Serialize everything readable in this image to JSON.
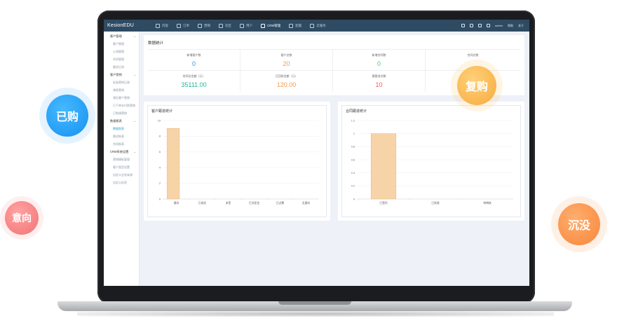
{
  "app": {
    "brand": "KesionEDU",
    "nav": [
      {
        "label": "内容",
        "icon": "content-icon"
      },
      {
        "label": "订单",
        "icon": "order-icon"
      },
      {
        "label": "营销",
        "icon": "tag-icon"
      },
      {
        "label": "社区",
        "icon": "chat-icon"
      },
      {
        "label": "用户",
        "icon": "user-icon"
      },
      {
        "label": "CRM管理",
        "icon": "crm-icon"
      },
      {
        "label": "配置",
        "icon": "gear-icon"
      },
      {
        "label": "云服务",
        "icon": "cloud-icon"
      }
    ],
    "tools": {
      "home": "home-icon",
      "monitor": "monitor-icon",
      "mobile": "mobile-icon",
      "plugin": "plugin-icon",
      "user": "admin",
      "help": "帮助",
      "logout": "关于"
    }
  },
  "sidebar": {
    "groups": [
      {
        "label": "客户管理",
        "items": [
          "客户管理",
          "公海管理",
          "合同管理",
          "跟进记录"
        ]
      },
      {
        "label": "客户营销",
        "items": [
          "标准营销记录",
          "课程营销",
          "潜在客户营销",
          "已下单未付款营销",
          "已购课营销"
        ]
      },
      {
        "label": "数据报表",
        "items": [
          "数据报表",
          "跟进报表",
          "合同报表"
        ]
      },
      {
        "label": "CRM系统设置",
        "items": [
          "营销模板管理",
          "客户类型设置",
          "自定义业务来源",
          "自定义标签"
        ]
      }
    ],
    "active": "数据报表"
  },
  "stats": {
    "title": "数据统计",
    "items": [
      {
        "label": "新增客户数",
        "value": "0",
        "color": "#2e9bd6"
      },
      {
        "label": "客户总数",
        "value": "20",
        "color": "#f39c4a"
      },
      {
        "label": "新增合同数",
        "value": "0",
        "color": "#59c36a"
      },
      {
        "label": "合同总数",
        "value": "",
        "color": "#59c36a"
      },
      {
        "label": "合同总金额（元）",
        "value": "35111.00",
        "color": "#2bb39a"
      },
      {
        "label": "已回款金额（元）",
        "value": "120.00",
        "color": "#f39c4a"
      },
      {
        "label": "客跟进次数",
        "value": "10",
        "color": "#ee5a5a"
      },
      {
        "label": "",
        "value": "",
        "color": "#59c36a"
      }
    ]
  },
  "chart_data": [
    {
      "type": "bar",
      "title": "客户跟进统计",
      "categories": [
        "意向",
        "已成交",
        "未签",
        "已交定金",
        "已过期",
        "无意向"
      ],
      "values": [
        9,
        0,
        0,
        0,
        0,
        0
      ],
      "ylim": [
        0,
        10
      ],
      "yticks": [
        "0",
        "2",
        "4",
        "6",
        "8",
        "10"
      ],
      "color": "#f7d3a8"
    },
    {
      "type": "bar",
      "title": "合同跟进统计",
      "categories": [
        "已签约",
        "已失效",
        "待审核"
      ],
      "values": [
        1,
        0,
        0
      ],
      "ylim": [
        0,
        1.2
      ],
      "yticks": [
        "0",
        "0.2",
        "0.4",
        "0.6",
        "0.8",
        "1",
        "1.2"
      ],
      "color": "#f7d3a8"
    }
  ],
  "bubbles": {
    "bought": "已购",
    "repurchase": "复购",
    "intent": "意向",
    "silent": "沉没"
  }
}
